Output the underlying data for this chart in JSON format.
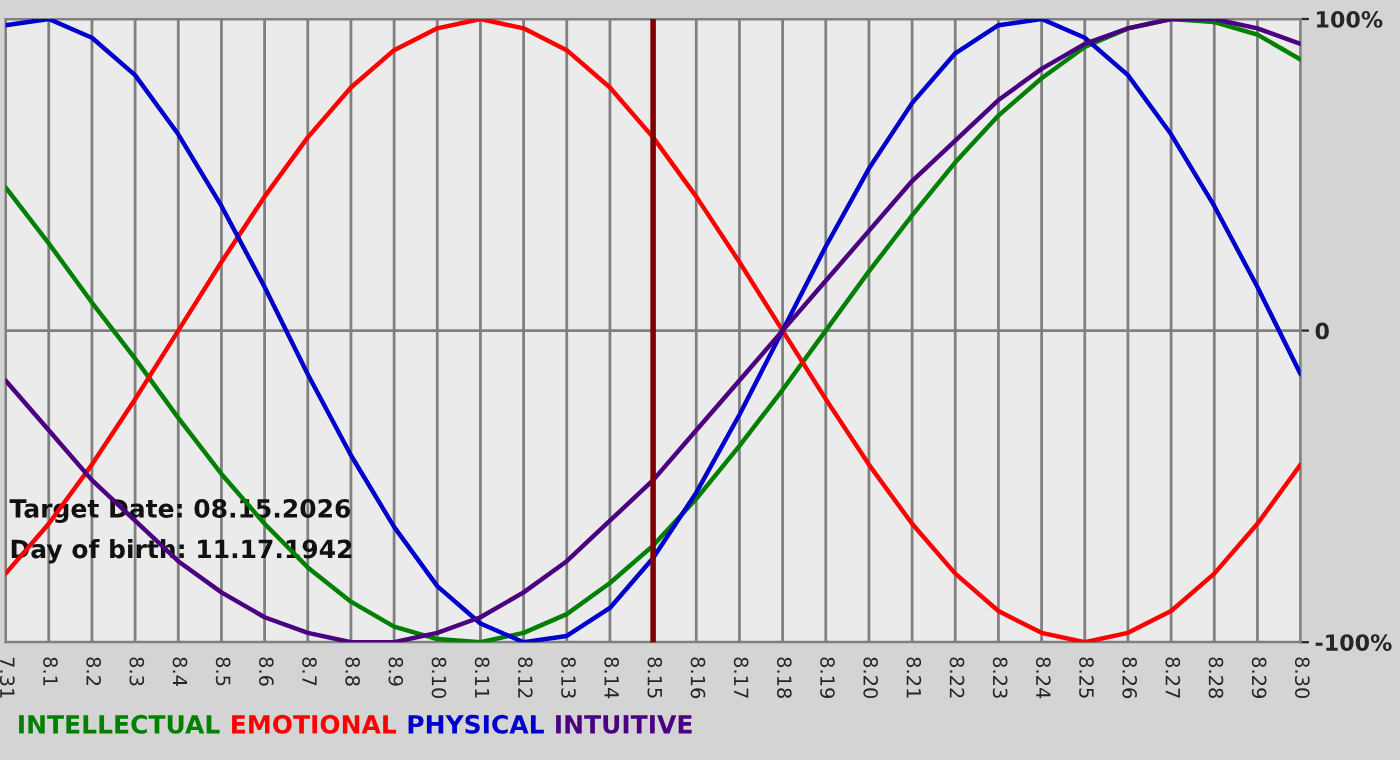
{
  "chart_data": {
    "type": "line",
    "categories": [
      "7.31",
      "8.1",
      "8.2",
      "8.3",
      "8.4",
      "8.5",
      "8.6",
      "8.7",
      "8.8",
      "8.9",
      "8.10",
      "8.11",
      "8.12",
      "8.13",
      "8.14",
      "8.15",
      "8.16",
      "8.17",
      "8.18",
      "8.19",
      "8.20",
      "8.21",
      "8.22",
      "8.23",
      "8.24",
      "8.25",
      "8.26",
      "8.27",
      "8.28",
      "8.29",
      "8.30"
    ],
    "series": [
      {
        "name": "INTELLECTUAL",
        "color": "#008000",
        "values": [
          46,
          28,
          9,
          -9,
          -28,
          -46,
          -62,
          -76,
          -87,
          -95,
          -99,
          -100,
          -97,
          -91,
          -81,
          -69,
          -54,
          -37,
          -19,
          0,
          19,
          37,
          54,
          69,
          81,
          91,
          97,
          100,
          99,
          95,
          87
        ]
      },
      {
        "name": "EMOTIONAL",
        "color": "#ff0000",
        "values": [
          -78,
          -62,
          -43,
          -22,
          0,
          22,
          43,
          62,
          78,
          90,
          97,
          100,
          97,
          90,
          78,
          62,
          43,
          22,
          0,
          -22,
          -43,
          -62,
          -78,
          -90,
          -97,
          -100,
          -97,
          -90,
          -78,
          -62,
          -43
        ]
      },
      {
        "name": "PHYSICAL",
        "color": "#0000cc",
        "values": [
          98,
          100,
          94,
          82,
          63,
          40,
          14,
          -14,
          -40,
          -63,
          -82,
          -94,
          -100,
          -98,
          -89,
          -73,
          -52,
          -27,
          0,
          27,
          52,
          73,
          89,
          98,
          100,
          94,
          82,
          63,
          40,
          14,
          -14
        ]
      },
      {
        "name": "INTUITIVE",
        "color": "#4b0082",
        "values": [
          -16,
          -32,
          -48,
          -61,
          -74,
          -84,
          -92,
          -97,
          -100,
          -100,
          -97,
          -92,
          -84,
          -74,
          -61,
          -48,
          -32,
          -16,
          0,
          16,
          32,
          48,
          61,
          74,
          84,
          92,
          97,
          100,
          100,
          97,
          92
        ]
      }
    ],
    "ylim": [
      -100,
      100
    ],
    "yticks": [
      {
        "value": 100,
        "label": "100%"
      },
      0,
      {
        "value": -100,
        "label": "-100%"
      }
    ],
    "grid": true,
    "legend": "bottom left",
    "ref_lines": [
      {
        "axis": "x",
        "value": "8.15",
        "color": "#800000"
      }
    ],
    "annotations": [
      "Target Date: 08.15.2026",
      "Day of birth: 11.17.1942"
    ]
  }
}
